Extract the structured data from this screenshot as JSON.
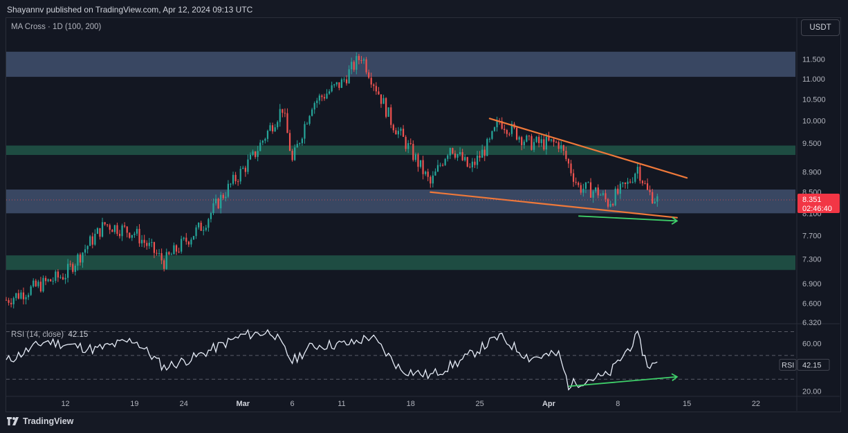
{
  "header": {
    "published": "Shayannv published on TradingView.com, Apr 12, 2024 09:13 UTC"
  },
  "main_pane": {
    "indicator_label": "MA Cross · 1D (100, 200)",
    "currency": "USDT",
    "price_badge": {
      "price": "8.351",
      "countdown": "02:46:40"
    }
  },
  "rsi_pane": {
    "label": "RSI (14, close)",
    "value": "42.15",
    "badge_label": "RSI"
  },
  "footer": {
    "brand": "TradingView"
  },
  "colors": {
    "background": "#131722",
    "up": "#26a69a",
    "down": "#ef5350",
    "resistance_zone": "#3b4a66",
    "support_zone": "#1f4f45",
    "trendline": "#f0793a",
    "divergence_arrow": "#3fd06a",
    "rsi_line": "#e6ecf7"
  },
  "chart_data": [
    {
      "type": "candlestick",
      "title": "",
      "y_ticks": [
        "11.500",
        "11.000",
        "10.500",
        "10.000",
        "9.500",
        "8.900",
        "8.500",
        "8.100",
        "7.700",
        "7.300",
        "6.900",
        "6.600",
        "6.320"
      ],
      "ylim": [
        6.32,
        11.9
      ],
      "y_scale": "log",
      "x_ticks": [
        "12",
        "19",
        "24",
        "Mar",
        "6",
        "11",
        "18",
        "25",
        "Apr",
        "8",
        "15",
        "22"
      ],
      "x_range": [
        "2024-02-06",
        "2024-04-26"
      ],
      "last_price": 8.351,
      "approx_close_path": [
        {
          "date": "2024-02-06",
          "close": 6.65
        },
        {
          "date": "2024-02-12",
          "close": 7.05
        },
        {
          "date": "2024-02-16",
          "close": 7.9
        },
        {
          "date": "2024-02-19",
          "close": 7.75
        },
        {
          "date": "2024-02-22",
          "close": 7.25
        },
        {
          "date": "2024-02-26",
          "close": 7.9
        },
        {
          "date": "2024-02-28",
          "close": 8.45
        },
        {
          "date": "2024-03-02",
          "close": 9.2
        },
        {
          "date": "2024-03-05",
          "close": 10.3
        },
        {
          "date": "2024-03-06",
          "close": 9.1
        },
        {
          "date": "2024-03-08",
          "close": 10.4
        },
        {
          "date": "2024-03-11",
          "close": 10.9
        },
        {
          "date": "2024-03-13",
          "close": 11.6
        },
        {
          "date": "2024-03-14",
          "close": 11.05
        },
        {
          "date": "2024-03-16",
          "close": 10.0
        },
        {
          "date": "2024-03-19",
          "close": 9.0
        },
        {
          "date": "2024-03-20",
          "close": 8.65
        },
        {
          "date": "2024-03-22",
          "close": 9.45
        },
        {
          "date": "2024-03-24",
          "close": 8.95
        },
        {
          "date": "2024-03-26",
          "close": 9.5
        },
        {
          "date": "2024-03-27",
          "close": 10.0
        },
        {
          "date": "2024-03-30",
          "close": 9.5
        },
        {
          "date": "2024-04-02",
          "close": 9.5
        },
        {
          "date": "2024-04-04",
          "close": 8.6
        },
        {
          "date": "2024-04-06",
          "close": 8.5
        },
        {
          "date": "2024-04-07",
          "close": 8.3
        },
        {
          "date": "2024-04-09",
          "close": 8.65
        },
        {
          "date": "2024-04-10",
          "close": 9.0
        },
        {
          "date": "2024-04-11",
          "close": 8.5
        },
        {
          "date": "2024-04-12",
          "close": 8.351
        }
      ],
      "zones": [
        {
          "kind": "resistance",
          "from": 11.05,
          "to": 11.7
        },
        {
          "kind": "resistance",
          "from": 9.25,
          "to": 9.45
        },
        {
          "kind": "support",
          "from": 8.1,
          "to": 8.55
        },
        {
          "kind": "support",
          "from": 7.12,
          "to": 7.36
        }
      ],
      "trendlines": [
        {
          "name": "upper wedge line",
          "from": {
            "date": "2024-03-26",
            "price": 10.05
          },
          "to": {
            "date": "2024-04-15",
            "price": 8.78
          }
        },
        {
          "name": "lower wedge line",
          "from": {
            "date": "2024-03-20",
            "price": 8.5
          },
          "to": {
            "date": "2024-04-14",
            "price": 8.02
          }
        }
      ]
    },
    {
      "type": "line",
      "title": "",
      "y_ticks": [
        "60.00",
        "40.00",
        "20.00"
      ],
      "ylim": [
        15,
        72
      ],
      "guide_levels": [
        70,
        50,
        30
      ],
      "last_value": 42.15,
      "approx_path": [
        {
          "date": "2024-02-06",
          "rsi": 45
        },
        {
          "date": "2024-02-10",
          "rsi": 62
        },
        {
          "date": "2024-02-15",
          "rsi": 55
        },
        {
          "date": "2024-02-19",
          "rsi": 63
        },
        {
          "date": "2024-02-22",
          "rsi": 40
        },
        {
          "date": "2024-02-25",
          "rsi": 48
        },
        {
          "date": "2024-03-01",
          "rsi": 67
        },
        {
          "date": "2024-03-04",
          "rsi": 70
        },
        {
          "date": "2024-03-06",
          "rsi": 45
        },
        {
          "date": "2024-03-08",
          "rsi": 58
        },
        {
          "date": "2024-03-12",
          "rsi": 60
        },
        {
          "date": "2024-03-14",
          "rsi": 66
        },
        {
          "date": "2024-03-17",
          "rsi": 38
        },
        {
          "date": "2024-03-20",
          "rsi": 33
        },
        {
          "date": "2024-03-23",
          "rsi": 45
        },
        {
          "date": "2024-03-27",
          "rsi": 66
        },
        {
          "date": "2024-03-30",
          "rsi": 48
        },
        {
          "date": "2024-04-02",
          "rsi": 51
        },
        {
          "date": "2024-04-03",
          "rsi": 25
        },
        {
          "date": "2024-04-05",
          "rsi": 30
        },
        {
          "date": "2024-04-07",
          "rsi": 33
        },
        {
          "date": "2024-04-09",
          "rsi": 55
        },
        {
          "date": "2024-04-10",
          "rsi": 66
        },
        {
          "date": "2024-04-11",
          "rsi": 42
        },
        {
          "date": "2024-04-12",
          "rsi": 42.15
        }
      ],
      "divergence": {
        "from": {
          "date": "2024-04-03",
          "rsi": 24
        },
        "to": {
          "date": "2024-04-14",
          "rsi": 32
        }
      }
    }
  ]
}
